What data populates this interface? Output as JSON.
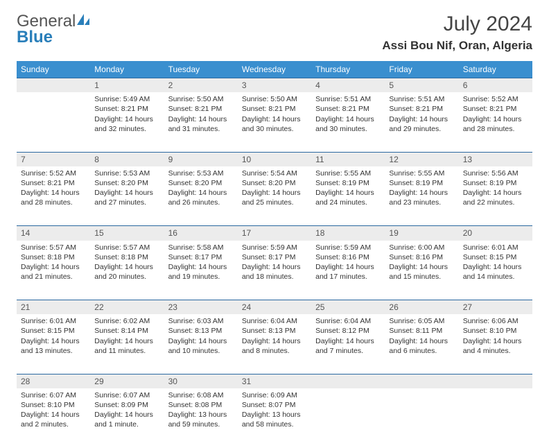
{
  "brand": {
    "name1": "General",
    "name2": "Blue"
  },
  "title": "July 2024",
  "location": "Assi Bou Nif, Oran, Algeria",
  "colors": {
    "header_bg": "#3a8fcf",
    "header_text": "#ffffff",
    "rule": "#2a68a0",
    "daynum_bg": "#ececec",
    "brand_blue": "#2a7fba"
  },
  "weekdays": [
    "Sunday",
    "Monday",
    "Tuesday",
    "Wednesday",
    "Thursday",
    "Friday",
    "Saturday"
  ],
  "weeks": [
    {
      "nums": [
        "",
        "1",
        "2",
        "3",
        "4",
        "5",
        "6"
      ],
      "cells": [
        null,
        {
          "sr": "Sunrise: 5:49 AM",
          "ss": "Sunset: 8:21 PM",
          "d1": "Daylight: 14 hours",
          "d2": "and 32 minutes."
        },
        {
          "sr": "Sunrise: 5:50 AM",
          "ss": "Sunset: 8:21 PM",
          "d1": "Daylight: 14 hours",
          "d2": "and 31 minutes."
        },
        {
          "sr": "Sunrise: 5:50 AM",
          "ss": "Sunset: 8:21 PM",
          "d1": "Daylight: 14 hours",
          "d2": "and 30 minutes."
        },
        {
          "sr": "Sunrise: 5:51 AM",
          "ss": "Sunset: 8:21 PM",
          "d1": "Daylight: 14 hours",
          "d2": "and 30 minutes."
        },
        {
          "sr": "Sunrise: 5:51 AM",
          "ss": "Sunset: 8:21 PM",
          "d1": "Daylight: 14 hours",
          "d2": "and 29 minutes."
        },
        {
          "sr": "Sunrise: 5:52 AM",
          "ss": "Sunset: 8:21 PM",
          "d1": "Daylight: 14 hours",
          "d2": "and 28 minutes."
        }
      ]
    },
    {
      "nums": [
        "7",
        "8",
        "9",
        "10",
        "11",
        "12",
        "13"
      ],
      "cells": [
        {
          "sr": "Sunrise: 5:52 AM",
          "ss": "Sunset: 8:21 PM",
          "d1": "Daylight: 14 hours",
          "d2": "and 28 minutes."
        },
        {
          "sr": "Sunrise: 5:53 AM",
          "ss": "Sunset: 8:20 PM",
          "d1": "Daylight: 14 hours",
          "d2": "and 27 minutes."
        },
        {
          "sr": "Sunrise: 5:53 AM",
          "ss": "Sunset: 8:20 PM",
          "d1": "Daylight: 14 hours",
          "d2": "and 26 minutes."
        },
        {
          "sr": "Sunrise: 5:54 AM",
          "ss": "Sunset: 8:20 PM",
          "d1": "Daylight: 14 hours",
          "d2": "and 25 minutes."
        },
        {
          "sr": "Sunrise: 5:55 AM",
          "ss": "Sunset: 8:19 PM",
          "d1": "Daylight: 14 hours",
          "d2": "and 24 minutes."
        },
        {
          "sr": "Sunrise: 5:55 AM",
          "ss": "Sunset: 8:19 PM",
          "d1": "Daylight: 14 hours",
          "d2": "and 23 minutes."
        },
        {
          "sr": "Sunrise: 5:56 AM",
          "ss": "Sunset: 8:19 PM",
          "d1": "Daylight: 14 hours",
          "d2": "and 22 minutes."
        }
      ]
    },
    {
      "nums": [
        "14",
        "15",
        "16",
        "17",
        "18",
        "19",
        "20"
      ],
      "cells": [
        {
          "sr": "Sunrise: 5:57 AM",
          "ss": "Sunset: 8:18 PM",
          "d1": "Daylight: 14 hours",
          "d2": "and 21 minutes."
        },
        {
          "sr": "Sunrise: 5:57 AM",
          "ss": "Sunset: 8:18 PM",
          "d1": "Daylight: 14 hours",
          "d2": "and 20 minutes."
        },
        {
          "sr": "Sunrise: 5:58 AM",
          "ss": "Sunset: 8:17 PM",
          "d1": "Daylight: 14 hours",
          "d2": "and 19 minutes."
        },
        {
          "sr": "Sunrise: 5:59 AM",
          "ss": "Sunset: 8:17 PM",
          "d1": "Daylight: 14 hours",
          "d2": "and 18 minutes."
        },
        {
          "sr": "Sunrise: 5:59 AM",
          "ss": "Sunset: 8:16 PM",
          "d1": "Daylight: 14 hours",
          "d2": "and 17 minutes."
        },
        {
          "sr": "Sunrise: 6:00 AM",
          "ss": "Sunset: 8:16 PM",
          "d1": "Daylight: 14 hours",
          "d2": "and 15 minutes."
        },
        {
          "sr": "Sunrise: 6:01 AM",
          "ss": "Sunset: 8:15 PM",
          "d1": "Daylight: 14 hours",
          "d2": "and 14 minutes."
        }
      ]
    },
    {
      "nums": [
        "21",
        "22",
        "23",
        "24",
        "25",
        "26",
        "27"
      ],
      "cells": [
        {
          "sr": "Sunrise: 6:01 AM",
          "ss": "Sunset: 8:15 PM",
          "d1": "Daylight: 14 hours",
          "d2": "and 13 minutes."
        },
        {
          "sr": "Sunrise: 6:02 AM",
          "ss": "Sunset: 8:14 PM",
          "d1": "Daylight: 14 hours",
          "d2": "and 11 minutes."
        },
        {
          "sr": "Sunrise: 6:03 AM",
          "ss": "Sunset: 8:13 PM",
          "d1": "Daylight: 14 hours",
          "d2": "and 10 minutes."
        },
        {
          "sr": "Sunrise: 6:04 AM",
          "ss": "Sunset: 8:13 PM",
          "d1": "Daylight: 14 hours",
          "d2": "and 8 minutes."
        },
        {
          "sr": "Sunrise: 6:04 AM",
          "ss": "Sunset: 8:12 PM",
          "d1": "Daylight: 14 hours",
          "d2": "and 7 minutes."
        },
        {
          "sr": "Sunrise: 6:05 AM",
          "ss": "Sunset: 8:11 PM",
          "d1": "Daylight: 14 hours",
          "d2": "and 6 minutes."
        },
        {
          "sr": "Sunrise: 6:06 AM",
          "ss": "Sunset: 8:10 PM",
          "d1": "Daylight: 14 hours",
          "d2": "and 4 minutes."
        }
      ]
    },
    {
      "nums": [
        "28",
        "29",
        "30",
        "31",
        "",
        "",
        ""
      ],
      "cells": [
        {
          "sr": "Sunrise: 6:07 AM",
          "ss": "Sunset: 8:10 PM",
          "d1": "Daylight: 14 hours",
          "d2": "and 2 minutes."
        },
        {
          "sr": "Sunrise: 6:07 AM",
          "ss": "Sunset: 8:09 PM",
          "d1": "Daylight: 14 hours",
          "d2": "and 1 minute."
        },
        {
          "sr": "Sunrise: 6:08 AM",
          "ss": "Sunset: 8:08 PM",
          "d1": "Daylight: 13 hours",
          "d2": "and 59 minutes."
        },
        {
          "sr": "Sunrise: 6:09 AM",
          "ss": "Sunset: 8:07 PM",
          "d1": "Daylight: 13 hours",
          "d2": "and 58 minutes."
        },
        null,
        null,
        null
      ]
    }
  ]
}
